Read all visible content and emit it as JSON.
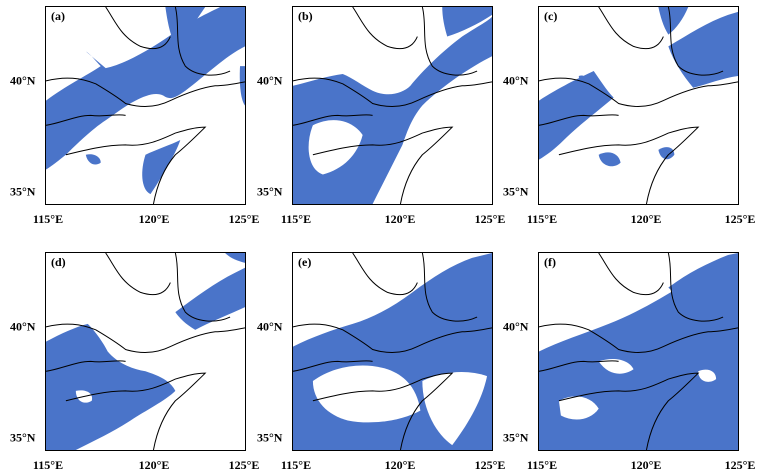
{
  "colors": {
    "ice": "#4a74c9",
    "land_line": "#000000",
    "sea": "#ffffff"
  },
  "panels": [
    {
      "label": "(a)"
    },
    {
      "label": "(b)"
    },
    {
      "label": "(c)"
    },
    {
      "label": "(d)"
    },
    {
      "label": "(e)"
    },
    {
      "label": "(f)"
    }
  ],
  "lat_labels": [
    "40°N",
    "35°N"
  ],
  "lon_labels": [
    "115°E",
    "120°E",
    "125°E"
  ]
}
